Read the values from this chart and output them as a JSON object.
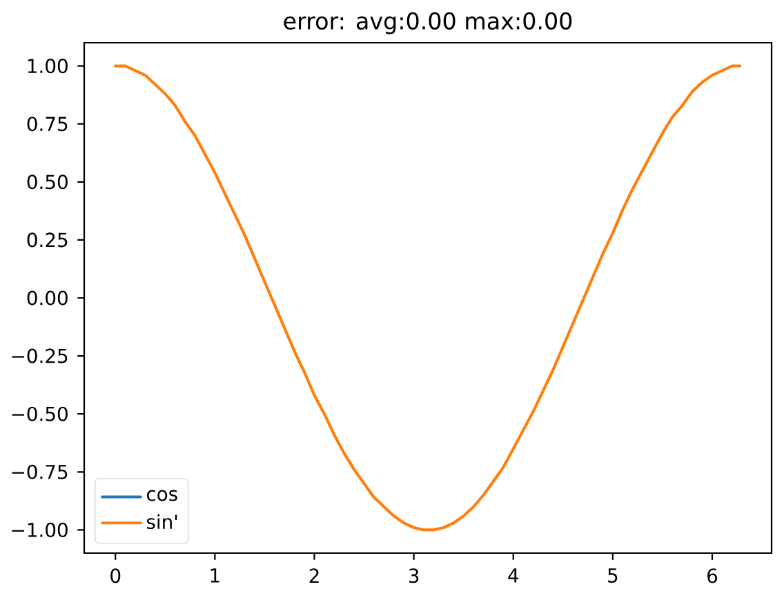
{
  "chart_data": {
    "type": "line",
    "title": "error: avg:0.00 max:0.00",
    "x": [
      0,
      0.1,
      0.2,
      0.3,
      0.4,
      0.5,
      0.6,
      0.7,
      0.8,
      0.9,
      1.0,
      1.1,
      1.2,
      1.3,
      1.4,
      1.5,
      1.6,
      1.7,
      1.8,
      1.9,
      2.0,
      2.1,
      2.2,
      2.3,
      2.4,
      2.5,
      2.6,
      2.7,
      2.8,
      2.9,
      3.0,
      3.1,
      3.2,
      3.3,
      3.4,
      3.5,
      3.6,
      3.7,
      3.8,
      3.9,
      4.0,
      4.1,
      4.2,
      4.3,
      4.4,
      4.5,
      4.6,
      4.7,
      4.8,
      4.9,
      5.0,
      5.1,
      5.2,
      5.3,
      5.4,
      5.5,
      5.6,
      5.7,
      5.8,
      5.9,
      6.0,
      6.1,
      6.2,
      6.28
    ],
    "series": [
      {
        "name": "cos",
        "color": "#1f77b4",
        "values": [
          null,
          null,
          null,
          null,
          null,
          null,
          null,
          null,
          null,
          null,
          null,
          null,
          null,
          null,
          null,
          null,
          null,
          null,
          null,
          null,
          null,
          null,
          null,
          null,
          null,
          null,
          null,
          null,
          null,
          null,
          null,
          null,
          null,
          null,
          null,
          null,
          null,
          null,
          null,
          null,
          null,
          null,
          null,
          null,
          null,
          null,
          null,
          null,
          null,
          null,
          null,
          null,
          null,
          null,
          null,
          null,
          null,
          null,
          null,
          null,
          null,
          null,
          null,
          null
        ]
      },
      {
        "name": "sin'",
        "color": "#ff7f0e",
        "values": [
          1.0,
          1.0,
          0.98,
          0.96,
          0.92,
          0.88,
          0.83,
          0.76,
          0.7,
          0.62,
          0.54,
          0.45,
          0.36,
          0.27,
          0.17,
          0.07,
          -0.03,
          -0.13,
          -0.23,
          -0.32,
          -0.42,
          -0.5,
          -0.59,
          -0.67,
          -0.74,
          -0.8,
          -0.86,
          -0.9,
          -0.94,
          -0.97,
          -0.99,
          -1.0,
          -1.0,
          -0.99,
          -0.97,
          -0.94,
          -0.9,
          -0.85,
          -0.79,
          -0.73,
          -0.65,
          -0.57,
          -0.49,
          -0.4,
          -0.31,
          -0.21,
          -0.11,
          -0.01,
          0.09,
          0.19,
          0.28,
          0.38,
          0.47,
          0.55,
          0.63,
          0.71,
          0.78,
          0.83,
          0.89,
          0.93,
          0.96,
          0.98,
          1.0,
          1.0
        ]
      }
    ],
    "xlim": [
      -0.314,
      6.597
    ],
    "ylim": [
      -1.1,
      1.1
    ],
    "xticks": [
      0,
      1,
      2,
      3,
      4,
      5,
      6
    ],
    "yticks": [
      {
        "value": -1,
        "label": "−1.00"
      },
      {
        "value": -0.75,
        "label": "−0.75"
      },
      {
        "value": -0.5,
        "label": "−0.50"
      },
      {
        "value": -0.25,
        "label": "−0.25"
      },
      {
        "value": 0,
        "label": "0.00"
      },
      {
        "value": 0.25,
        "label": "0.25"
      },
      {
        "value": 0.5,
        "label": "0.50"
      },
      {
        "value": 0.75,
        "label": "0.75"
      },
      {
        "value": 1,
        "label": "1.00"
      }
    ],
    "legend": "bottom left",
    "marker": "none",
    "line_style": "solid",
    "grid": false
  }
}
